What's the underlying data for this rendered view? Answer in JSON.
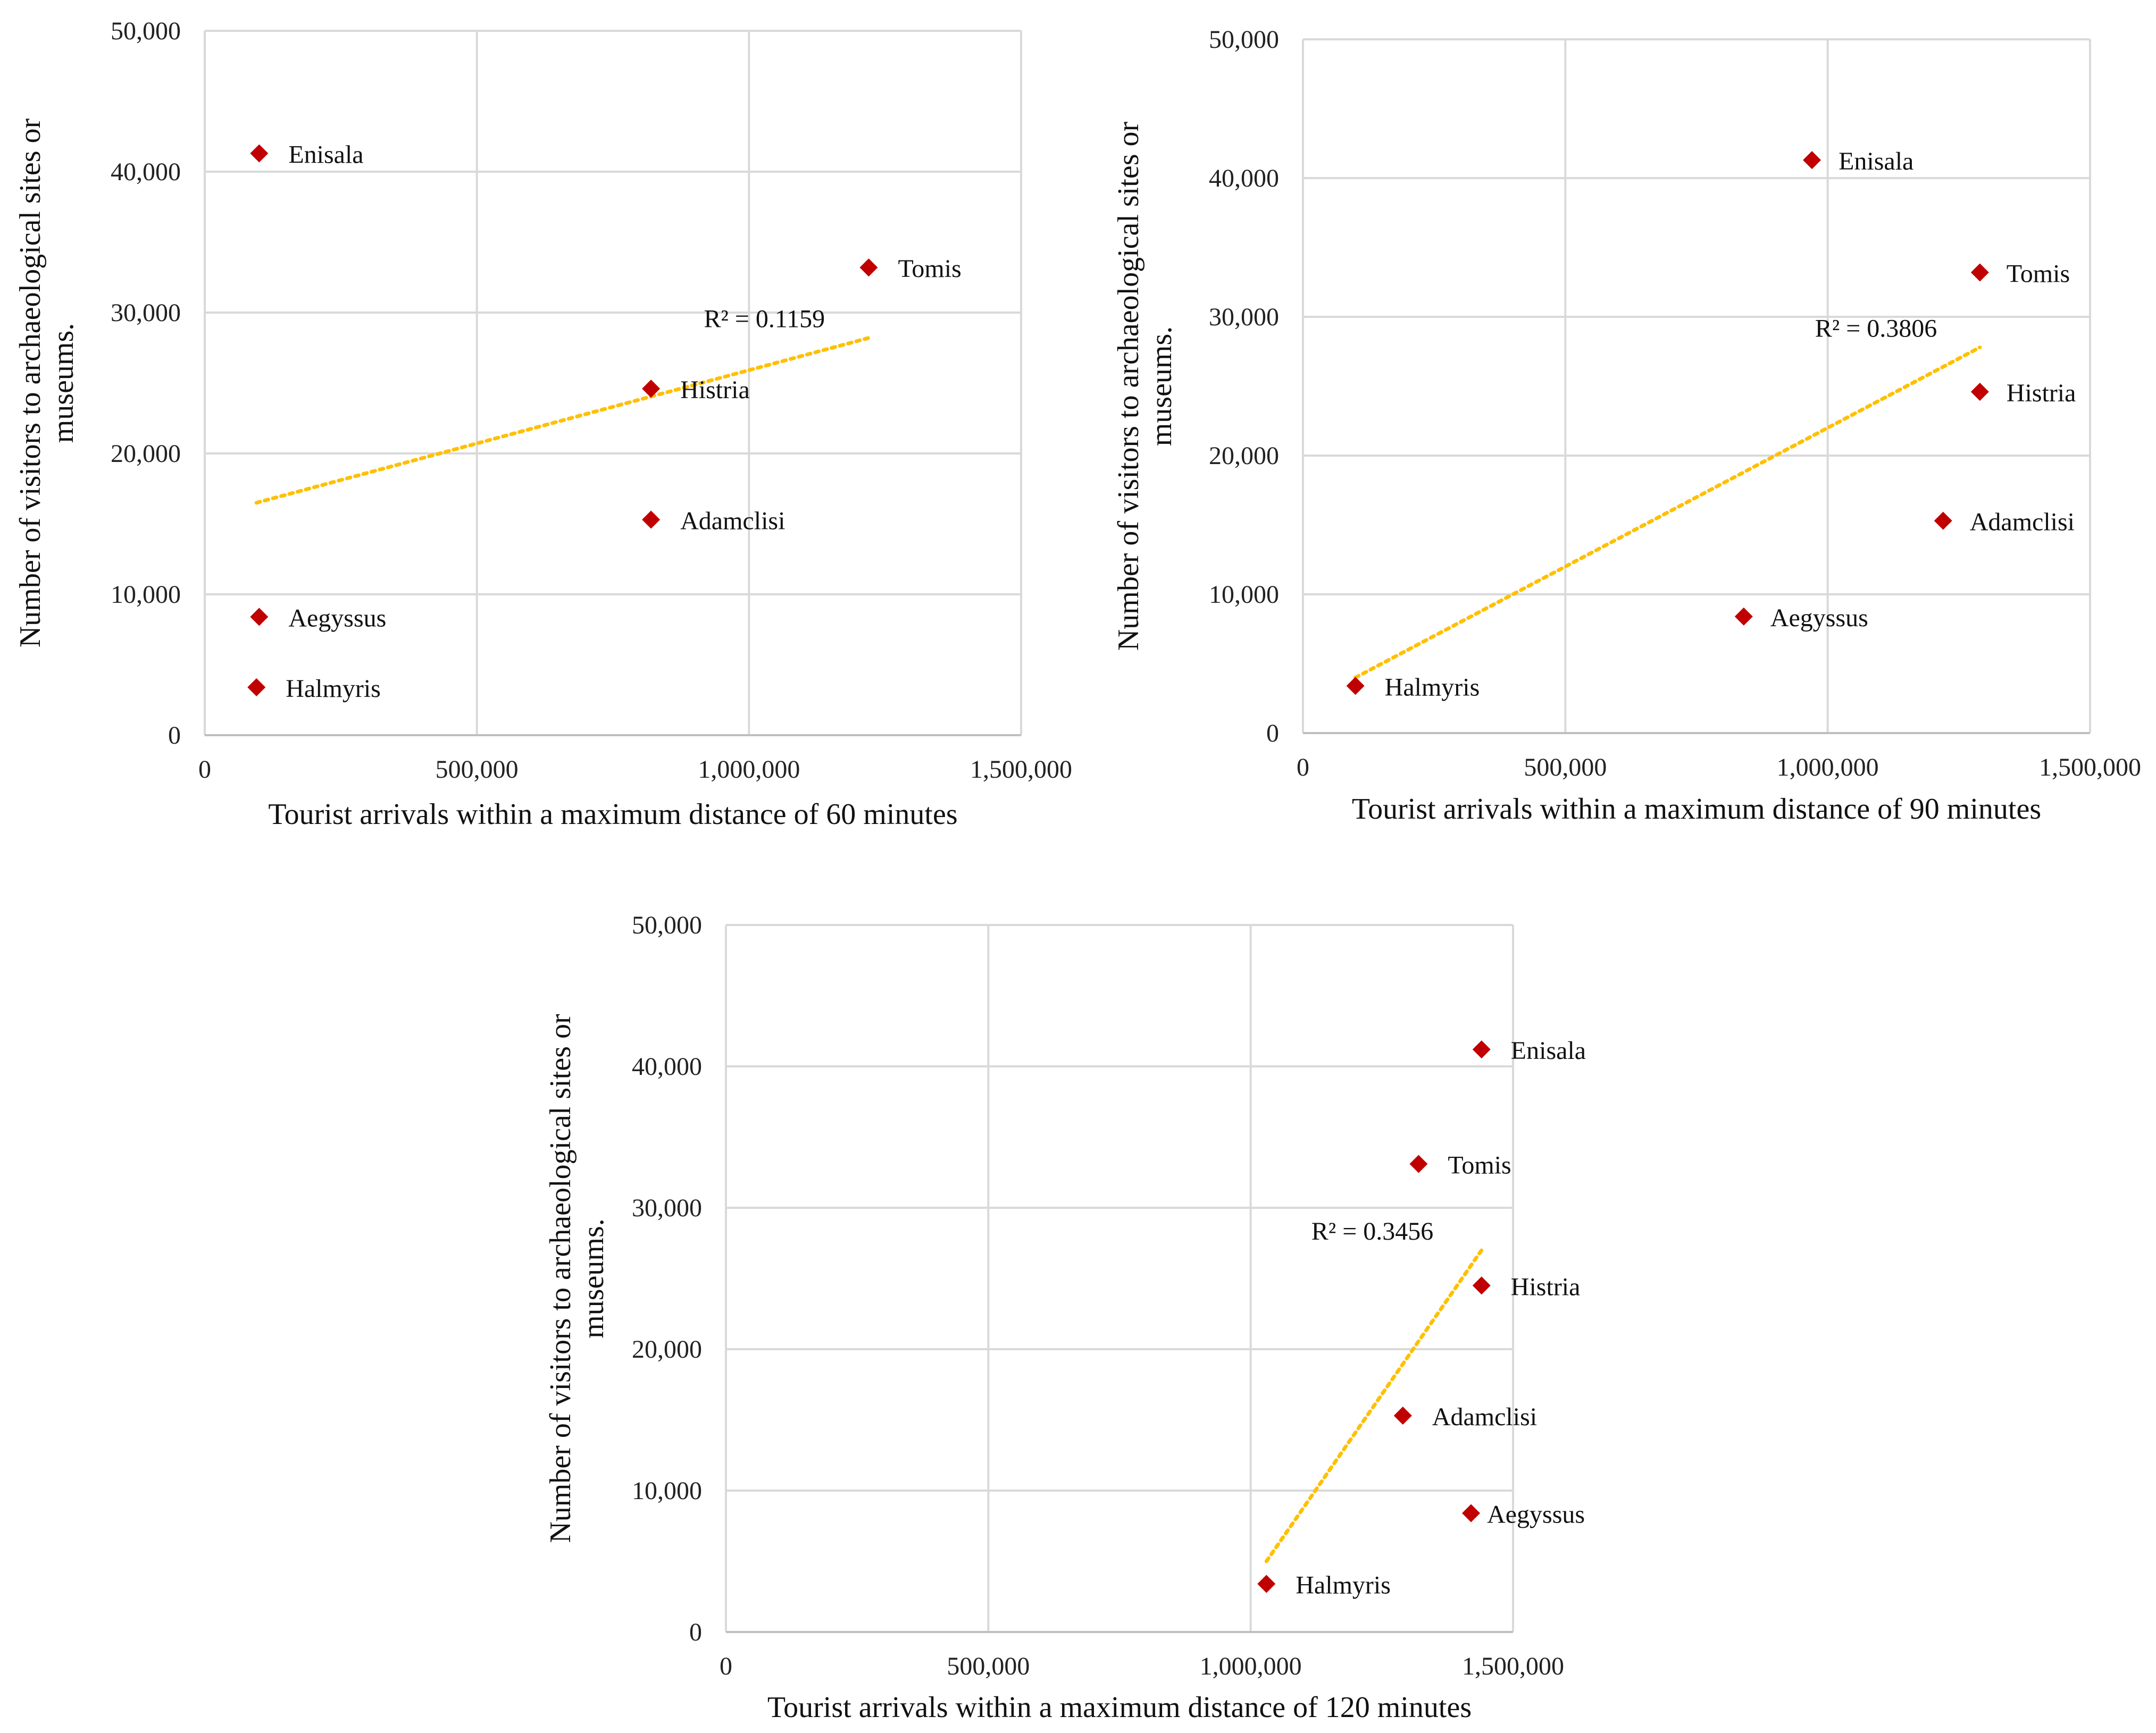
{
  "chart_data": [
    {
      "type": "scatter",
      "xlabel": "Tourist arrivals within a maximum distance of 60 minutes",
      "ylabel": "Number of visitors to archaeological sites or museums.",
      "xlim": [
        0,
        1500000
      ],
      "ylim": [
        0,
        50000
      ],
      "xticks": [
        "0",
        "500,000",
        "1,000,000",
        "1,500,000"
      ],
      "yticks": [
        "0",
        "10,000",
        "20,000",
        "30,000",
        "40,000",
        "50,000"
      ],
      "grid": true,
      "marker_color": "#c00000",
      "trendline_color": "#ffc000",
      "points": [
        {
          "label": "Enisala",
          "x": 100000,
          "y": 41300
        },
        {
          "label": "Tomis",
          "x": 1220000,
          "y": 33200
        },
        {
          "label": "Histria",
          "x": 820000,
          "y": 24600
        },
        {
          "label": "Adamclisi",
          "x": 820000,
          "y": 15300
        },
        {
          "label": "Aegyssus",
          "x": 100000,
          "y": 8400
        },
        {
          "label": "Halmyris",
          "x": 95000,
          "y": 3400
        }
      ],
      "trendline": {
        "x": [
          95000,
          1220000
        ],
        "y": [
          16500,
          28200
        ],
        "r2_text": "R² = 0.1159"
      }
    },
    {
      "type": "scatter",
      "xlabel": "Tourist arrivals within a maximum distance of 90 minutes",
      "ylabel": "Number of visitors to archaeological sites or museums.",
      "xlim": [
        0,
        1500000
      ],
      "ylim": [
        0,
        50000
      ],
      "xticks": [
        "0",
        "500,000",
        "1,000,000",
        "1,500,000"
      ],
      "yticks": [
        "0",
        "10,000",
        "20,000",
        "30,000",
        "40,000",
        "50,000"
      ],
      "grid": true,
      "marker_color": "#c00000",
      "trendline_color": "#ffc000",
      "points": [
        {
          "label": "Enisala",
          "x": 970000,
          "y": 41300
        },
        {
          "label": "Tomis",
          "x": 1290000,
          "y": 33200
        },
        {
          "label": "Histria",
          "x": 1290000,
          "y": 24600
        },
        {
          "label": "Adamclisi",
          "x": 1220000,
          "y": 15300
        },
        {
          "label": "Aegyssus",
          "x": 840000,
          "y": 8400
        },
        {
          "label": "Halmyris",
          "x": 100000,
          "y": 3400
        }
      ],
      "trendline": {
        "x": [
          100000,
          1290000
        ],
        "y": [
          4000,
          27800
        ],
        "r2_text": "R² = 0.3806"
      }
    },
    {
      "type": "scatter",
      "xlabel": "Tourist arrivals within a maximum distance of 120 minutes",
      "ylabel": "Number of visitors to archaeological sites or museums.",
      "xlim": [
        0,
        1500000
      ],
      "ylim": [
        0,
        50000
      ],
      "xticks": [
        "0",
        "500,000",
        "1,000,000",
        "1,500,000"
      ],
      "yticks": [
        "0",
        "10,000",
        "20,000",
        "30,000",
        "40,000",
        "50,000"
      ],
      "grid": true,
      "marker_color": "#c00000",
      "trendline_color": "#ffc000",
      "points": [
        {
          "label": "Enisala",
          "x": 1440000,
          "y": 41200
        },
        {
          "label": "Tomis",
          "x": 1320000,
          "y": 33100
        },
        {
          "label": "Histria",
          "x": 1440000,
          "y": 24500
        },
        {
          "label": "Adamclisi",
          "x": 1290000,
          "y": 15300
        },
        {
          "label": "Aegyssus",
          "x": 1420000,
          "y": 8400
        },
        {
          "label": "Halmyris",
          "x": 1030000,
          "y": 3400
        }
      ],
      "trendline": {
        "x": [
          1030000,
          1440000
        ],
        "y": [
          5000,
          27000
        ],
        "r2_text": "R² = 0.3456"
      }
    }
  ]
}
